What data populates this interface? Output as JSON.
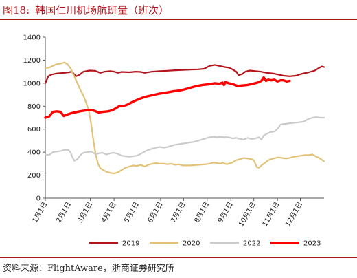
{
  "title": {
    "number": "图18:",
    "text": "韩国仁川机场航班量（班次）"
  },
  "source": "资料来源：FlightAware，浙商证券研究所",
  "chart_data": {
    "type": "line",
    "title": "韩国仁川机场航班量（班次）",
    "xlabel": "",
    "ylabel": "",
    "ylim": [
      0,
      1400
    ],
    "yticks": [
      0,
      200,
      400,
      600,
      800,
      1000,
      1200,
      1400
    ],
    "xlim": [
      0,
      365
    ],
    "xticks": [
      {
        "label": "1月1日",
        "day": 0
      },
      {
        "label": "2月1日",
        "day": 31
      },
      {
        "label": "3月1日",
        "day": 59
      },
      {
        "label": "4月1日",
        "day": 90
      },
      {
        "label": "5月1日",
        "day": 120
      },
      {
        "label": "6月1日",
        "day": 151
      },
      {
        "label": "7月1日",
        "day": 181
      },
      {
        "label": "8月1日",
        "day": 212
      },
      {
        "label": "9月1日",
        "day": 243
      },
      {
        "label": "10月1日",
        "day": 273
      },
      {
        "label": "11月1日",
        "day": 304
      },
      {
        "label": "12月1日",
        "day": 334
      }
    ],
    "grid": false,
    "legend_position": "bottom",
    "series": [
      {
        "name": "2019",
        "color": "#b3131b",
        "width": 2.2,
        "points": [
          [
            0,
            1000
          ],
          [
            4,
            1060
          ],
          [
            8,
            1075
          ],
          [
            15,
            1085
          ],
          [
            25,
            1090
          ],
          [
            31,
            1095
          ],
          [
            35,
            1100
          ],
          [
            40,
            1060
          ],
          [
            44,
            1070
          ],
          [
            50,
            1100
          ],
          [
            58,
            1110
          ],
          [
            65,
            1108
          ],
          [
            72,
            1090
          ],
          [
            78,
            1100
          ],
          [
            85,
            1105
          ],
          [
            90,
            1100
          ],
          [
            95,
            1090
          ],
          [
            100,
            1098
          ],
          [
            110,
            1095
          ],
          [
            118,
            1100
          ],
          [
            125,
            1098
          ],
          [
            130,
            1090
          ],
          [
            140,
            1100
          ],
          [
            150,
            1105
          ],
          [
            160,
            1108
          ],
          [
            170,
            1112
          ],
          [
            180,
            1115
          ],
          [
            190,
            1118
          ],
          [
            200,
            1120
          ],
          [
            208,
            1125
          ],
          [
            215,
            1150
          ],
          [
            222,
            1158
          ],
          [
            228,
            1150
          ],
          [
            235,
            1140
          ],
          [
            240,
            1135
          ],
          [
            245,
            1120
          ],
          [
            250,
            1100
          ],
          [
            253,
            1070
          ],
          [
            258,
            1080
          ],
          [
            262,
            1100
          ],
          [
            268,
            1110
          ],
          [
            275,
            1105
          ],
          [
            282,
            1100
          ],
          [
            290,
            1090
          ],
          [
            298,
            1085
          ],
          [
            305,
            1075
          ],
          [
            312,
            1065
          ],
          [
            320,
            1060
          ],
          [
            328,
            1065
          ],
          [
            335,
            1080
          ],
          [
            345,
            1095
          ],
          [
            353,
            1110
          ],
          [
            358,
            1130
          ],
          [
            362,
            1145
          ],
          [
            365,
            1140
          ]
        ]
      },
      {
        "name": "2020",
        "color": "#e2c277",
        "width": 2.2,
        "points": [
          [
            0,
            1130
          ],
          [
            5,
            1135
          ],
          [
            10,
            1150
          ],
          [
            15,
            1165
          ],
          [
            20,
            1170
          ],
          [
            25,
            1180
          ],
          [
            29,
            1165
          ],
          [
            33,
            1130
          ],
          [
            38,
            1060
          ],
          [
            42,
            1000
          ],
          [
            46,
            940
          ],
          [
            50,
            890
          ],
          [
            54,
            820
          ],
          [
            57,
            760
          ],
          [
            60,
            650
          ],
          [
            63,
            500
          ],
          [
            66,
            380
          ],
          [
            69,
            300
          ],
          [
            72,
            260
          ],
          [
            76,
            245
          ],
          [
            80,
            230
          ],
          [
            85,
            220
          ],
          [
            90,
            215
          ],
          [
            95,
            225
          ],
          [
            100,
            245
          ],
          [
            105,
            265
          ],
          [
            110,
            275
          ],
          [
            115,
            285
          ],
          [
            120,
            280
          ],
          [
            125,
            290
          ],
          [
            130,
            275
          ],
          [
            135,
            290
          ],
          [
            140,
            300
          ],
          [
            145,
            305
          ],
          [
            150,
            300
          ],
          [
            155,
            300
          ],
          [
            160,
            295
          ],
          [
            165,
            300
          ],
          [
            170,
            290
          ],
          [
            175,
            295
          ],
          [
            180,
            285
          ],
          [
            190,
            285
          ],
          [
            200,
            290
          ],
          [
            210,
            295
          ],
          [
            215,
            300
          ],
          [
            220,
            310
          ],
          [
            225,
            305
          ],
          [
            230,
            300
          ],
          [
            232,
            310
          ],
          [
            235,
            300
          ],
          [
            238,
            295
          ],
          [
            240,
            300
          ],
          [
            245,
            310
          ],
          [
            250,
            330
          ],
          [
            255,
            340
          ],
          [
            260,
            350
          ],
          [
            265,
            345
          ],
          [
            270,
            340
          ],
          [
            273,
            330
          ],
          [
            277,
            270
          ],
          [
            280,
            265
          ],
          [
            283,
            285
          ],
          [
            288,
            310
          ],
          [
            292,
            330
          ],
          [
            298,
            345
          ],
          [
            305,
            355
          ],
          [
            310,
            350
          ],
          [
            315,
            345
          ],
          [
            320,
            350
          ],
          [
            325,
            360
          ],
          [
            330,
            365
          ],
          [
            335,
            370
          ],
          [
            340,
            375
          ],
          [
            345,
            375
          ],
          [
            350,
            380
          ],
          [
            355,
            360
          ],
          [
            360,
            345
          ],
          [
            365,
            320
          ]
        ]
      },
      {
        "name": "2022",
        "color": "#cbcbcb",
        "width": 2.2,
        "points": [
          [
            0,
            380
          ],
          [
            5,
            375
          ],
          [
            10,
            400
          ],
          [
            15,
            405
          ],
          [
            20,
            410
          ],
          [
            25,
            420
          ],
          [
            30,
            420
          ],
          [
            33,
            400
          ],
          [
            36,
            350
          ],
          [
            38,
            325
          ],
          [
            42,
            340
          ],
          [
            46,
            375
          ],
          [
            50,
            395
          ],
          [
            55,
            400
          ],
          [
            60,
            405
          ],
          [
            63,
            395
          ],
          [
            66,
            380
          ],
          [
            70,
            390
          ],
          [
            75,
            395
          ],
          [
            80,
            380
          ],
          [
            85,
            390
          ],
          [
            90,
            395
          ],
          [
            95,
            385
          ],
          [
            100,
            370
          ],
          [
            105,
            365
          ],
          [
            110,
            360
          ],
          [
            115,
            365
          ],
          [
            120,
            370
          ],
          [
            125,
            385
          ],
          [
            130,
            405
          ],
          [
            135,
            420
          ],
          [
            140,
            430
          ],
          [
            145,
            440
          ],
          [
            150,
            445
          ],
          [
            155,
            440
          ],
          [
            160,
            445
          ],
          [
            165,
            455
          ],
          [
            170,
            465
          ],
          [
            175,
            470
          ],
          [
            180,
            475
          ],
          [
            185,
            480
          ],
          [
            190,
            485
          ],
          [
            195,
            490
          ],
          [
            200,
            500
          ],
          [
            205,
            510
          ],
          [
            210,
            520
          ],
          [
            215,
            530
          ],
          [
            220,
            535
          ],
          [
            225,
            530
          ],
          [
            230,
            535
          ],
          [
            235,
            530
          ],
          [
            240,
            530
          ],
          [
            245,
            520
          ],
          [
            250,
            525
          ],
          [
            255,
            515
          ],
          [
            260,
            510
          ],
          [
            265,
            525
          ],
          [
            270,
            515
          ],
          [
            275,
            520
          ],
          [
            280,
            530
          ],
          [
            283,
            510
          ],
          [
            286,
            545
          ],
          [
            290,
            560
          ],
          [
            295,
            575
          ],
          [
            300,
            580
          ],
          [
            302,
            590
          ],
          [
            305,
            610
          ],
          [
            308,
            640
          ],
          [
            312,
            645
          ],
          [
            318,
            650
          ],
          [
            325,
            655
          ],
          [
            332,
            660
          ],
          [
            338,
            665
          ],
          [
            345,
            690
          ],
          [
            350,
            700
          ],
          [
            355,
            705
          ],
          [
            360,
            700
          ],
          [
            365,
            700
          ]
        ]
      },
      {
        "name": "2023",
        "color": "#ff0000",
        "width": 3.4,
        "points": [
          [
            0,
            700
          ],
          [
            5,
            710
          ],
          [
            10,
            750
          ],
          [
            15,
            755
          ],
          [
            20,
            750
          ],
          [
            24,
            715
          ],
          [
            28,
            725
          ],
          [
            35,
            740
          ],
          [
            45,
            755
          ],
          [
            55,
            765
          ],
          [
            62,
            765
          ],
          [
            70,
            745
          ],
          [
            75,
            750
          ],
          [
            82,
            755
          ],
          [
            88,
            765
          ],
          [
            92,
            780
          ],
          [
            98,
            805
          ],
          [
            102,
            800
          ],
          [
            108,
            815
          ],
          [
            115,
            840
          ],
          [
            122,
            860
          ],
          [
            130,
            880
          ],
          [
            140,
            895
          ],
          [
            150,
            910
          ],
          [
            160,
            920
          ],
          [
            168,
            930
          ],
          [
            175,
            935
          ],
          [
            182,
            945
          ],
          [
            190,
            960
          ],
          [
            198,
            975
          ],
          [
            206,
            985
          ],
          [
            214,
            990
          ],
          [
            222,
            1000
          ],
          [
            228,
            995
          ],
          [
            232,
            1005
          ],
          [
            234,
            985
          ],
          [
            236,
            1010
          ],
          [
            240,
            1000
          ],
          [
            246,
            990
          ],
          [
            252,
            975
          ],
          [
            258,
            980
          ],
          [
            265,
            985
          ],
          [
            272,
            995
          ],
          [
            278,
            1005
          ],
          [
            283,
            1020
          ],
          [
            286,
            1050
          ],
          [
            289,
            1020
          ],
          [
            292,
            1030
          ],
          [
            296,
            1025
          ],
          [
            300,
            1030
          ],
          [
            304,
            1015
          ],
          [
            308,
            1025
          ],
          [
            312,
            1025
          ],
          [
            316,
            1015
          ],
          [
            320,
            1020
          ]
        ]
      }
    ]
  }
}
